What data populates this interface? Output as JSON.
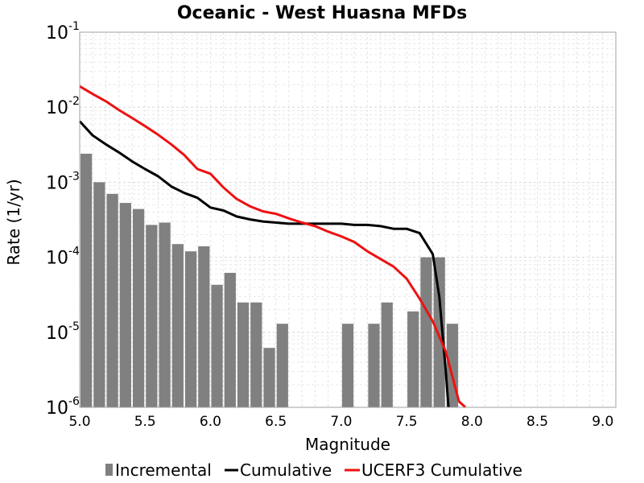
{
  "chart_data": {
    "type": "bar",
    "title": "Oceanic - West Huasna MFDs",
    "xlabel": "Magnitude",
    "ylabel": "Rate (1/yr)",
    "xlim": [
      5.0,
      9.1
    ],
    "ylim": [
      1e-06,
      0.1
    ],
    "y_scale": "log",
    "grid": true,
    "legend_position": "bottom",
    "x_ticks": [
      "5.0",
      "5.5",
      "6.0",
      "6.5",
      "7.0",
      "7.5",
      "8.0",
      "8.5",
      "9.0"
    ],
    "y_ticks": [
      {
        "base": "10",
        "exp": "-6"
      },
      {
        "base": "10",
        "exp": "-5"
      },
      {
        "base": "10",
        "exp": "-4"
      },
      {
        "base": "10",
        "exp": "-3"
      },
      {
        "base": "10",
        "exp": "-2"
      },
      {
        "base": "10",
        "exp": "-1"
      }
    ],
    "series": [
      {
        "name": "Incremental",
        "kind": "bar",
        "color": "#808080",
        "x": [
          5.05,
          5.15,
          5.25,
          5.35,
          5.45,
          5.55,
          5.65,
          5.75,
          5.85,
          5.95,
          6.05,
          6.15,
          6.25,
          6.35,
          6.45,
          6.55,
          7.05,
          7.25,
          7.35,
          7.55,
          7.65,
          7.75,
          7.85
        ],
        "y": [
          0.0024,
          0.001,
          0.0007,
          0.00053,
          0.00044,
          0.00027,
          0.00029,
          0.00015,
          0.00012,
          0.00014,
          4.3e-05,
          6.2e-05,
          2.5e-05,
          2.5e-05,
          6.2e-06,
          1.3e-05,
          1.3e-05,
          1.3e-05,
          2.5e-05,
          1.9e-05,
          0.0001,
          0.0001,
          1.3e-05
        ]
      },
      {
        "name": "Cumulative",
        "kind": "line",
        "color": "#000000",
        "x": [
          5.0,
          5.1,
          5.2,
          5.3,
          5.4,
          5.5,
          5.6,
          5.7,
          5.8,
          5.9,
          6.0,
          6.1,
          6.2,
          6.3,
          6.4,
          6.5,
          6.6,
          6.7,
          6.8,
          6.9,
          7.0,
          7.1,
          7.2,
          7.3,
          7.4,
          7.5,
          7.6,
          7.7,
          7.75,
          7.8,
          7.82
        ],
        "y": [
          0.0065,
          0.0042,
          0.0032,
          0.0025,
          0.0019,
          0.0015,
          0.0012,
          0.00088,
          0.00072,
          0.00062,
          0.00046,
          0.00042,
          0.00035,
          0.00032,
          0.0003,
          0.00029,
          0.00028,
          0.00028,
          0.00028,
          0.00028,
          0.00028,
          0.00027,
          0.00027,
          0.00026,
          0.00024,
          0.00024,
          0.00021,
          0.00011,
          3e-05,
          3e-06,
          1e-06
        ]
      },
      {
        "name": "UCERF3 Cumulative",
        "kind": "line",
        "color": "#ee1111",
        "x": [
          5.0,
          5.1,
          5.2,
          5.3,
          5.4,
          5.5,
          5.6,
          5.7,
          5.8,
          5.9,
          6.0,
          6.1,
          6.2,
          6.3,
          6.4,
          6.5,
          6.6,
          6.7,
          6.8,
          6.9,
          7.0,
          7.1,
          7.2,
          7.3,
          7.4,
          7.5,
          7.6,
          7.7,
          7.8,
          7.9,
          7.95
        ],
        "y": [
          0.019,
          0.015,
          0.012,
          0.0092,
          0.0072,
          0.0056,
          0.0043,
          0.0032,
          0.0023,
          0.0015,
          0.0013,
          0.00085,
          0.0006,
          0.00048,
          0.00041,
          0.00038,
          0.00033,
          0.00029,
          0.00026,
          0.00022,
          0.00019,
          0.00016,
          0.00012,
          9.5e-05,
          7.5e-05,
          5.2e-05,
          2.8e-05,
          1.4e-05,
          5.5e-06,
          1.2e-06,
          1e-06
        ]
      }
    ]
  }
}
